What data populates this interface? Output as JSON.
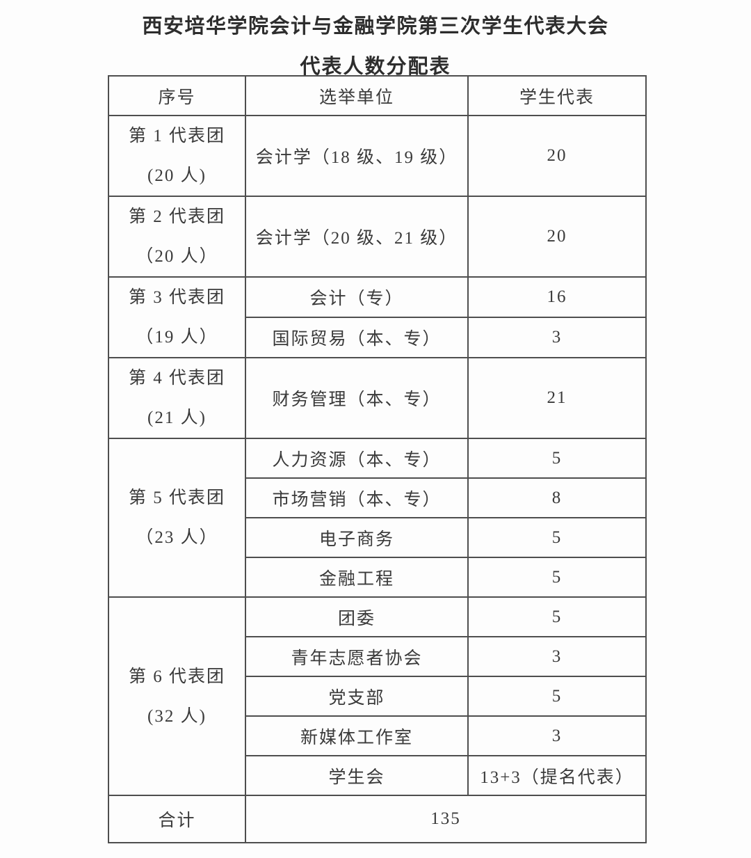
{
  "page": {
    "title": "西安培华学院会计与金融学院第三次学生代表大会",
    "subtitle": "代表人数分配表"
  },
  "table": {
    "headers": [
      "序号",
      "选举单位",
      "学生代表"
    ],
    "groups": [
      {
        "name": "第 1 代表团",
        "size": "(20 人)",
        "units": [
          {
            "unit": "会计学（18 级、19 级）",
            "count": "20"
          }
        ]
      },
      {
        "name": "第 2 代表团",
        "size": "（20 人）",
        "units": [
          {
            "unit": "会计学（20 级、21 级）",
            "count": "20"
          }
        ]
      },
      {
        "name": "第 3 代表团",
        "size": "（19 人）",
        "units": [
          {
            "unit": "会计（专）",
            "count": "16"
          },
          {
            "unit": "国际贸易（本、专）",
            "count": "3"
          }
        ]
      },
      {
        "name": "第 4 代表团",
        "size": "(21 人)",
        "units": [
          {
            "unit": "财务管理（本、专）",
            "count": "21"
          }
        ]
      },
      {
        "name": "第 5 代表团",
        "size": "（23 人）",
        "units": [
          {
            "unit": "人力资源（本、专）",
            "count": "5"
          },
          {
            "unit": "市场营销（本、专）",
            "count": "8"
          },
          {
            "unit": "电子商务",
            "count": "5"
          },
          {
            "unit": "金融工程",
            "count": "5"
          }
        ]
      },
      {
        "name": "第 6 代表团",
        "size": "(32 人)",
        "units": [
          {
            "unit": "团委",
            "count": "5"
          },
          {
            "unit": "青年志愿者协会",
            "count": "3"
          },
          {
            "unit": "党支部",
            "count": "5"
          },
          {
            "unit": "新媒体工作室",
            "count": "3"
          },
          {
            "unit": "学生会",
            "count": "13+3（提名代表）"
          }
        ]
      }
    ],
    "total_label": "合计",
    "total_value": "135"
  }
}
